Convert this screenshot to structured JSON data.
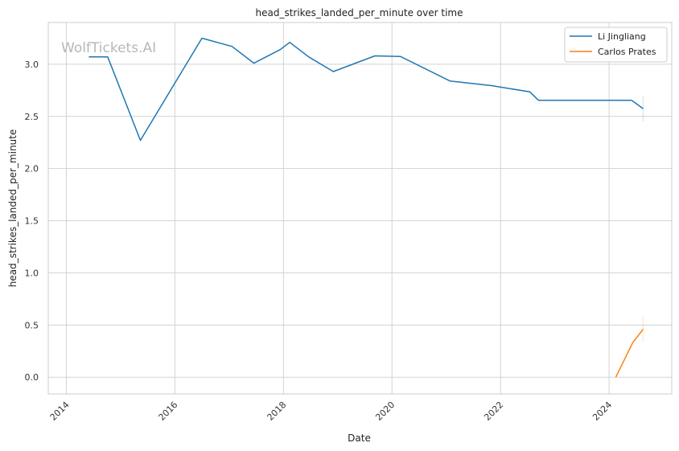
{
  "chart_data": {
    "type": "line",
    "title": "head_strikes_landed_per_minute over time",
    "xlabel": "Date",
    "ylabel": "head_strikes_landed_per_minute",
    "watermark": "WolfTickets.AI",
    "x_ticks": [
      "2014",
      "2016",
      "2018",
      "2020",
      "2022",
      "2024"
    ],
    "y_ticks": [
      "0.0",
      "0.5",
      "1.0",
      "1.5",
      "2.0",
      "2.5",
      "3.0"
    ],
    "xlim": [
      "2013-09-01",
      "2025-02-26"
    ],
    "ylim": [
      -0.16,
      3.4
    ],
    "grid": true,
    "legend_position": "top-right",
    "colors": {
      "Li Jingliang": "#1f77b4",
      "Carlos Prates": "#ff7f0e"
    },
    "series": [
      {
        "name": "Li Jingliang",
        "points": [
          [
            "2014-06-01",
            3.07
          ],
          [
            "2014-10-06",
            3.07
          ],
          [
            "2015-05-14",
            2.27
          ],
          [
            "2016-07-01",
            3.25
          ],
          [
            "2017-01-20",
            3.17
          ],
          [
            "2017-06-16",
            3.01
          ],
          [
            "2017-12-10",
            3.14
          ],
          [
            "2018-02-12",
            3.21
          ],
          [
            "2018-06-20",
            3.07
          ],
          [
            "2018-12-02",
            2.93
          ],
          [
            "2019-09-08",
            3.08
          ],
          [
            "2020-02-26",
            3.075
          ],
          [
            "2021-01-25",
            2.84
          ],
          [
            "2021-11-01",
            2.795
          ],
          [
            "2022-07-17",
            2.735
          ],
          [
            "2022-09-13",
            2.655
          ],
          [
            "2024-06-01",
            2.655
          ],
          [
            "2024-08-17",
            2.575
          ]
        ]
      },
      {
        "name": "Carlos Prates",
        "points": [
          [
            "2024-02-15",
            0.0
          ],
          [
            "2024-06-08",
            0.33
          ],
          [
            "2024-08-17",
            0.46
          ]
        ]
      }
    ]
  }
}
